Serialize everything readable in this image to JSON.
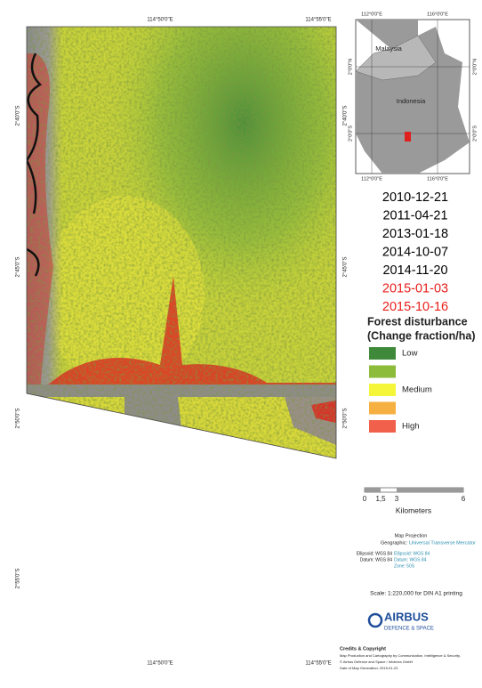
{
  "map": {
    "top_lon_labels": [
      "114°50'0\"E",
      "114°55'0\"E"
    ],
    "bottom_lon_labels": [
      "114°50'0\"E",
      "114°55'0\"E"
    ],
    "left_lat_labels": [
      "2°40'0\"S",
      "2°45'0\"S",
      "2°50'0\"S",
      "2°55'0\"S"
    ],
    "right_lat_labels": [
      "2°40'0\"S",
      "2°45'0\"S",
      "2°50'0\"S"
    ]
  },
  "inset": {
    "top_labels": [
      "112°0'0\"E",
      "116°0'0\"E"
    ],
    "bottom_labels": [
      "112°0'0\"E",
      "116°0'0\"E"
    ],
    "left_labels": [
      "2°0'0\"N",
      "2°0'0\"S"
    ],
    "right_labels": [
      "2°0'0\"N",
      "2°0'0\"S"
    ],
    "countries": [
      "Malaysia",
      "Indonesia"
    ]
  },
  "dates": [
    {
      "text": "2010-12-21",
      "color": "#000000"
    },
    {
      "text": "2011-04-21",
      "color": "#000000"
    },
    {
      "text": "2013-01-18",
      "color": "#000000"
    },
    {
      "text": "2014-10-07",
      "color": "#000000"
    },
    {
      "text": "2014-11-20",
      "color": "#000000"
    },
    {
      "text": "2015-01-03",
      "color": "#e8201c"
    },
    {
      "text": "2015-10-16",
      "color": "#e8201c"
    }
  ],
  "legend": {
    "title": [
      "Forest disturbance",
      "(Change fraction/ha)"
    ],
    "items": [
      {
        "color": "#3f8a3a",
        "label": "Low"
      },
      {
        "color": "#8dbb3a"
      },
      {
        "color": "#f5f53a",
        "label": "Medium"
      },
      {
        "color": "#f5b041"
      },
      {
        "color": "#f0604a",
        "label": "High"
      }
    ]
  },
  "scalebar": {
    "ticks": [
      "0",
      "1,5",
      "3",
      "6"
    ],
    "unit": "Kilometers"
  },
  "projection": {
    "title": "Map Projection",
    "geographic_label": "Geographic:",
    "geographic_value": "Universal Transverse Mercator",
    "left": [
      "Ellipsoid: WGS 84",
      "Datum: WGS 84"
    ],
    "right": [
      "Ellipsoid: WGS 84",
      "Datum: WGS 84",
      "Zone: 50S"
    ]
  },
  "scale_text": "Scale: 1:220,000 for DIN A1 printing",
  "logo": {
    "name": "AIRBUS",
    "sub": "DEFENCE & SPACE"
  },
  "credits": {
    "title": "Credits & Copyright",
    "lines": [
      "Map Production and Cartography by Communication, Intelligence & Security,",
      "© Airbus Defence and Space / Infoterra GmbH",
      "Date of Map Generation: 2015-01-23"
    ]
  }
}
